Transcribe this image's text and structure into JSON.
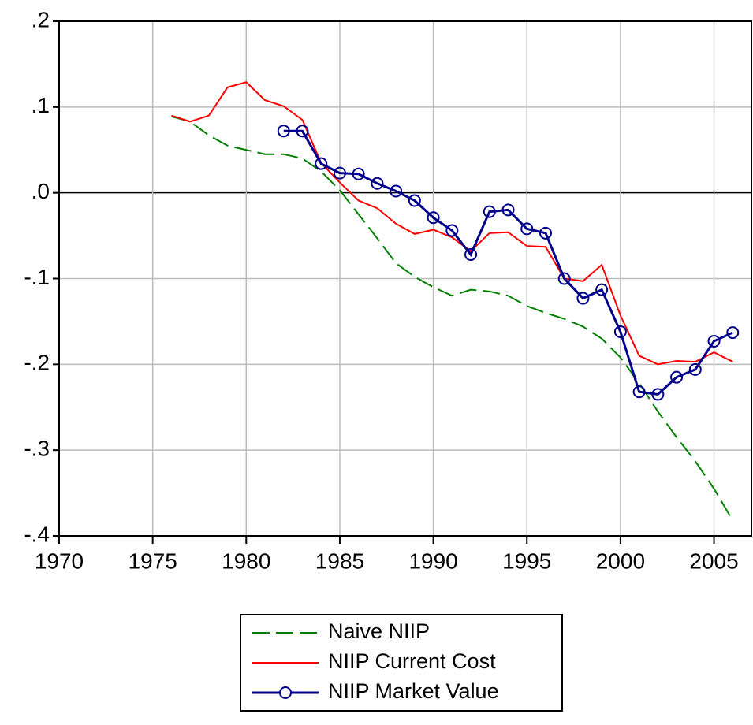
{
  "chart_data": {
    "type": "line",
    "x": [
      1976,
      1977,
      1978,
      1979,
      1980,
      1981,
      1982,
      1983,
      1984,
      1985,
      1986,
      1987,
      1988,
      1989,
      1990,
      1991,
      1992,
      1993,
      1994,
      1995,
      1996,
      1997,
      1998,
      1999,
      2000,
      2001,
      2002,
      2003,
      2004,
      2005,
      2006
    ],
    "series": [
      {
        "name": "Naive NIIP",
        "color": "#008000",
        "dash": true,
        "markers": false,
        "values": [
          0.089,
          0.083,
          0.067,
          0.055,
          0.05,
          0.045,
          0.045,
          0.04,
          0.025,
          0.003,
          -0.025,
          -0.053,
          -0.082,
          -0.098,
          -0.11,
          -0.12,
          -0.113,
          -0.115,
          -0.12,
          -0.132,
          -0.14,
          -0.147,
          -0.156,
          -0.17,
          -0.192,
          -0.222,
          -0.255,
          -0.285,
          -0.313,
          -0.345,
          -0.382
        ]
      },
      {
        "name": "NIIP Current Cost",
        "color": "#ff0000",
        "dash": false,
        "markers": false,
        "values": [
          0.09,
          0.083,
          0.09,
          0.123,
          0.129,
          0.108,
          0.101,
          0.085,
          0.035,
          0.012,
          -0.009,
          -0.018,
          -0.036,
          -0.048,
          -0.043,
          -0.052,
          -0.068,
          -0.047,
          -0.046,
          -0.062,
          -0.063,
          -0.1,
          -0.103,
          -0.084,
          -0.143,
          -0.19,
          -0.2,
          -0.196,
          -0.197,
          -0.186,
          -0.197
        ]
      },
      {
        "name": "NIIP Market Value",
        "color": "#00008b",
        "dash": false,
        "markers": true,
        "values": [
          null,
          null,
          null,
          null,
          null,
          null,
          0.072,
          0.072,
          0.034,
          0.023,
          0.022,
          0.011,
          0.002,
          -0.009,
          -0.029,
          -0.044,
          -0.072,
          -0.022,
          -0.02,
          -0.042,
          -0.047,
          -0.1,
          -0.123,
          -0.113,
          -0.162,
          -0.232,
          -0.235,
          -0.215,
          -0.206,
          -0.173,
          -0.163
        ]
      }
    ],
    "xlim": [
      1970,
      2007
    ],
    "xticks": [
      1970,
      1975,
      1980,
      1985,
      1990,
      1995,
      2000,
      2005
    ],
    "ylim": [
      -0.4,
      0.2
    ],
    "yticks": [
      {
        "value": -0.4,
        "label": "-.4"
      },
      {
        "value": -0.3,
        "label": "-.3"
      },
      {
        "value": -0.2,
        "label": "-.2"
      },
      {
        "value": -0.1,
        "label": "-.1"
      },
      {
        "value": 0,
        "label": ".0"
      },
      {
        "value": 0.1,
        "label": ".1"
      },
      {
        "value": 0.2,
        "label": ".2"
      }
    ],
    "grid": true,
    "legend": "bottom"
  }
}
